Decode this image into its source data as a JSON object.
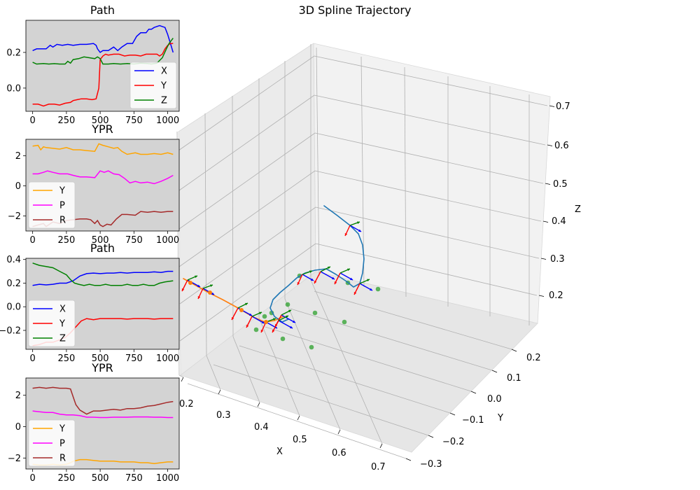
{
  "chart_data": [
    {
      "type": "line",
      "title": "Path",
      "xlim": [
        -50,
        1085
      ],
      "ylim": [
        -0.13,
        0.38
      ],
      "xticks": [
        0,
        250,
        500,
        750,
        1000
      ],
      "yticks": [
        0.0,
        0.2
      ],
      "xtick_labels": [
        "0",
        "250",
        "500",
        "750",
        "1000"
      ],
      "ytick_labels": [
        "0.0",
        "0.2"
      ],
      "legend_placement": "lower-right",
      "background": "#d3d3d3",
      "series": [
        {
          "name": "X",
          "color": "#0000ff",
          "x": [
            0,
            30,
            60,
            100,
            130,
            150,
            180,
            220,
            260,
            300,
            350,
            400,
            450,
            470,
            480,
            500,
            520,
            560,
            600,
            630,
            660,
            700,
            740,
            770,
            800,
            840,
            860,
            880,
            900,
            940,
            960,
            980,
            1000,
            1020,
            1040
          ],
          "y": [
            0.21,
            0.22,
            0.22,
            0.22,
            0.24,
            0.23,
            0.245,
            0.24,
            0.245,
            0.24,
            0.245,
            0.245,
            0.25,
            0.24,
            0.22,
            0.2,
            0.21,
            0.21,
            0.23,
            0.21,
            0.23,
            0.25,
            0.25,
            0.29,
            0.31,
            0.31,
            0.33,
            0.33,
            0.34,
            0.35,
            0.345,
            0.34,
            0.3,
            0.25,
            0.2
          ]
        },
        {
          "name": "Y",
          "color": "#ff0000",
          "x": [
            0,
            40,
            80,
            120,
            160,
            200,
            240,
            280,
            300,
            330,
            360,
            400,
            440,
            470,
            490,
            500,
            520,
            540,
            560,
            600,
            640,
            680,
            720,
            760,
            800,
            840,
            880,
            920,
            940,
            960,
            980,
            1000,
            1020,
            1040
          ],
          "y": [
            -0.09,
            -0.09,
            -0.1,
            -0.09,
            -0.09,
            -0.095,
            -0.085,
            -0.08,
            -0.07,
            -0.065,
            -0.06,
            -0.06,
            -0.065,
            -0.06,
            0.0,
            0.16,
            0.18,
            0.19,
            0.185,
            0.19,
            0.19,
            0.18,
            0.185,
            0.185,
            0.18,
            0.19,
            0.19,
            0.19,
            0.18,
            0.19,
            0.22,
            0.24,
            0.25,
            0.25
          ]
        },
        {
          "name": "Z",
          "color": "#008000",
          "x": [
            0,
            30,
            80,
            120,
            160,
            200,
            240,
            260,
            280,
            300,
            340,
            380,
            420,
            460,
            480,
            500,
            520,
            560,
            600,
            650,
            700,
            750,
            800,
            850,
            880,
            920,
            960,
            990,
            1010,
            1040
          ],
          "y": [
            0.145,
            0.135,
            0.138,
            0.135,
            0.137,
            0.135,
            0.135,
            0.15,
            0.14,
            0.16,
            0.165,
            0.175,
            0.17,
            0.165,
            0.175,
            0.165,
            0.135,
            0.135,
            0.138,
            0.135,
            0.138,
            0.135,
            0.14,
            0.138,
            0.135,
            0.14,
            0.17,
            0.22,
            0.25,
            0.28
          ]
        }
      ]
    },
    {
      "type": "line",
      "title": "YPR",
      "xlim": [
        -50,
        1085
      ],
      "ylim": [
        -3.0,
        3.1
      ],
      "xticks": [
        0,
        250,
        500,
        750,
        1000
      ],
      "yticks": [
        -2,
        0,
        2
      ],
      "xtick_labels": [
        "0",
        "250",
        "500",
        "750",
        "1000"
      ],
      "ytick_labels": [
        "−2",
        "0",
        "2"
      ],
      "legend_placement": "lower-left",
      "background": "#d3d3d3",
      "series": [
        {
          "name": "Y",
          "color": "#ffa500",
          "x": [
            0,
            40,
            60,
            80,
            100,
            150,
            200,
            250,
            300,
            350,
            400,
            460,
            490,
            520,
            560,
            600,
            630,
            660,
            700,
            760,
            800,
            850,
            900,
            950,
            1000,
            1040
          ],
          "y": [
            2.65,
            2.7,
            2.4,
            2.6,
            2.55,
            2.5,
            2.45,
            2.55,
            2.4,
            2.4,
            2.35,
            2.3,
            2.8,
            2.7,
            2.6,
            2.5,
            2.55,
            2.3,
            2.1,
            2.2,
            2.1,
            2.1,
            2.15,
            2.1,
            2.2,
            2.1
          ]
        },
        {
          "name": "P",
          "color": "#ff00ff",
          "x": [
            0,
            40,
            80,
            110,
            150,
            200,
            260,
            300,
            350,
            400,
            460,
            500,
            530,
            560,
            600,
            640,
            680,
            720,
            760,
            800,
            850,
            900,
            950,
            1000,
            1040
          ],
          "y": [
            0.8,
            0.8,
            0.9,
            1.0,
            0.9,
            0.8,
            0.8,
            0.7,
            0.6,
            0.6,
            0.55,
            1.0,
            0.9,
            1.0,
            0.8,
            0.75,
            0.5,
            0.2,
            0.3,
            0.2,
            0.25,
            0.15,
            0.3,
            0.5,
            0.7
          ]
        },
        {
          "name": "R",
          "color": "#a52a2a",
          "x": [
            0,
            40,
            80,
            100,
            150,
            200,
            250,
            300,
            350,
            400,
            430,
            460,
            480,
            500,
            520,
            550,
            580,
            620,
            660,
            700,
            760,
            800,
            850,
            900,
            950,
            1000,
            1040
          ],
          "y": [
            -2.7,
            -2.6,
            -2.5,
            -2.7,
            -2.4,
            -2.5,
            -2.3,
            -2.25,
            -2.2,
            -2.2,
            -2.25,
            -2.5,
            -2.3,
            -2.6,
            -2.7,
            -2.55,
            -2.6,
            -2.2,
            -1.9,
            -1.9,
            -1.95,
            -1.7,
            -1.75,
            -1.7,
            -1.75,
            -1.7,
            -1.7
          ]
        }
      ]
    },
    {
      "type": "line",
      "title": "Path",
      "xlim": [
        -50,
        1085
      ],
      "ylim": [
        -0.36,
        0.41
      ],
      "xticks": [
        0,
        250,
        500,
        750,
        1000
      ],
      "yticks": [
        -0.2,
        0.0,
        0.2,
        0.4
      ],
      "xtick_labels": [
        "0",
        "250",
        "500",
        "750",
        "1000"
      ],
      "ytick_labels": [
        "−0.2",
        "0.0",
        "0.2",
        "0.4"
      ],
      "legend_placement": "lower-left",
      "background": "#d3d3d3",
      "series": [
        {
          "name": "X",
          "color": "#0000ff",
          "x": [
            0,
            50,
            100,
            150,
            200,
            250,
            300,
            350,
            400,
            450,
            500,
            550,
            600,
            650,
            700,
            750,
            800,
            850,
            900,
            950,
            1000,
            1040
          ],
          "y": [
            0.18,
            0.19,
            0.185,
            0.19,
            0.2,
            0.2,
            0.22,
            0.26,
            0.28,
            0.285,
            0.28,
            0.285,
            0.285,
            0.29,
            0.285,
            0.29,
            0.29,
            0.29,
            0.295,
            0.29,
            0.3,
            0.3
          ]
        },
        {
          "name": "Y",
          "color": "#ff0000",
          "x": [
            0,
            50,
            100,
            150,
            200,
            240,
            280,
            320,
            360,
            400,
            450,
            500,
            550,
            600,
            650,
            700,
            750,
            800,
            850,
            900,
            950,
            1000,
            1040
          ],
          "y": [
            -0.33,
            -0.32,
            -0.3,
            -0.3,
            -0.28,
            -0.26,
            -0.22,
            -0.17,
            -0.12,
            -0.1,
            -0.11,
            -0.1,
            -0.1,
            -0.1,
            -0.1,
            -0.105,
            -0.1,
            -0.1,
            -0.1,
            -0.105,
            -0.1,
            -0.1,
            -0.1
          ]
        },
        {
          "name": "Z",
          "color": "#008000",
          "x": [
            0,
            50,
            100,
            150,
            200,
            250,
            280,
            310,
            340,
            380,
            420,
            460,
            500,
            540,
            580,
            620,
            660,
            700,
            740,
            780,
            820,
            860,
            900,
            940,
            980,
            1040
          ],
          "y": [
            0.37,
            0.35,
            0.34,
            0.33,
            0.3,
            0.27,
            0.23,
            0.2,
            0.19,
            0.18,
            0.19,
            0.18,
            0.18,
            0.19,
            0.18,
            0.18,
            0.18,
            0.19,
            0.18,
            0.18,
            0.19,
            0.18,
            0.18,
            0.2,
            0.21,
            0.22
          ]
        }
      ]
    },
    {
      "type": "line",
      "title": "YPR",
      "xlim": [
        -50,
        1085
      ],
      "ylim": [
        -2.7,
        3.1
      ],
      "xticks": [
        0,
        250,
        500,
        750,
        1000
      ],
      "yticks": [
        -2,
        0,
        2
      ],
      "xtick_labels": [
        "0",
        "250",
        "500",
        "750",
        "1000"
      ],
      "ytick_labels": [
        "−2",
        "0",
        "2"
      ],
      "legend_placement": "lower-left",
      "background": "#d3d3d3",
      "series": [
        {
          "name": "Y",
          "color": "#ffa500",
          "x": [
            0,
            50,
            100,
            150,
            200,
            250,
            280,
            300,
            350,
            400,
            450,
            500,
            550,
            600,
            650,
            700,
            750,
            800,
            850,
            900,
            950,
            1000,
            1040
          ],
          "y": [
            -2.4,
            -2.45,
            -2.45,
            -2.4,
            -2.45,
            -2.4,
            -2.3,
            -2.2,
            -2.1,
            -2.1,
            -2.15,
            -2.2,
            -2.2,
            -2.2,
            -2.25,
            -2.25,
            -2.25,
            -2.3,
            -2.3,
            -2.35,
            -2.3,
            -2.25,
            -2.25
          ]
        },
        {
          "name": "P",
          "color": "#ff00ff",
          "x": [
            0,
            50,
            100,
            150,
            200,
            250,
            300,
            350,
            400,
            450,
            500,
            550,
            600,
            650,
            700,
            750,
            800,
            850,
            900,
            950,
            1000,
            1040
          ],
          "y": [
            1.0,
            0.95,
            0.9,
            0.9,
            0.8,
            0.75,
            0.75,
            0.7,
            0.6,
            0.6,
            0.58,
            0.58,
            0.6,
            0.6,
            0.6,
            0.62,
            0.62,
            0.62,
            0.6,
            0.6,
            0.58,
            0.58
          ]
        },
        {
          "name": "R",
          "color": "#a52a2a",
          "x": [
            0,
            50,
            100,
            150,
            200,
            250,
            280,
            300,
            320,
            350,
            380,
            400,
            450,
            500,
            550,
            600,
            650,
            700,
            750,
            800,
            850,
            900,
            950,
            1000,
            1040
          ],
          "y": [
            2.45,
            2.5,
            2.45,
            2.5,
            2.45,
            2.45,
            2.4,
            1.9,
            1.4,
            1.05,
            0.9,
            0.8,
            1.0,
            1.0,
            1.05,
            1.1,
            1.05,
            1.15,
            1.15,
            1.2,
            1.3,
            1.35,
            1.45,
            1.55,
            1.6
          ]
        }
      ]
    },
    {
      "type": "scatter",
      "title": "3D Spline Trajectory",
      "xlabel": "X",
      "ylabel": "Y",
      "zlabel": "Z",
      "xticks": [
        "0.2",
        "0.3",
        "0.4",
        "0.5",
        "0.6",
        "0.7"
      ],
      "yticks": [
        "−0.3",
        "−0.2",
        "−0.1",
        "0.0",
        "0.1",
        "0.2"
      ],
      "zticks": [
        "0.2",
        "0.3",
        "0.4",
        "0.5",
        "0.6",
        "0.7"
      ],
      "grid": true,
      "colors": {
        "spline": "#1f77b4",
        "path": "#ff7f0e",
        "points": "#2ca02c",
        "x_axis": "#0000ff",
        "y_axis": "#ff0000",
        "z_axis": "#008000"
      }
    }
  ]
}
